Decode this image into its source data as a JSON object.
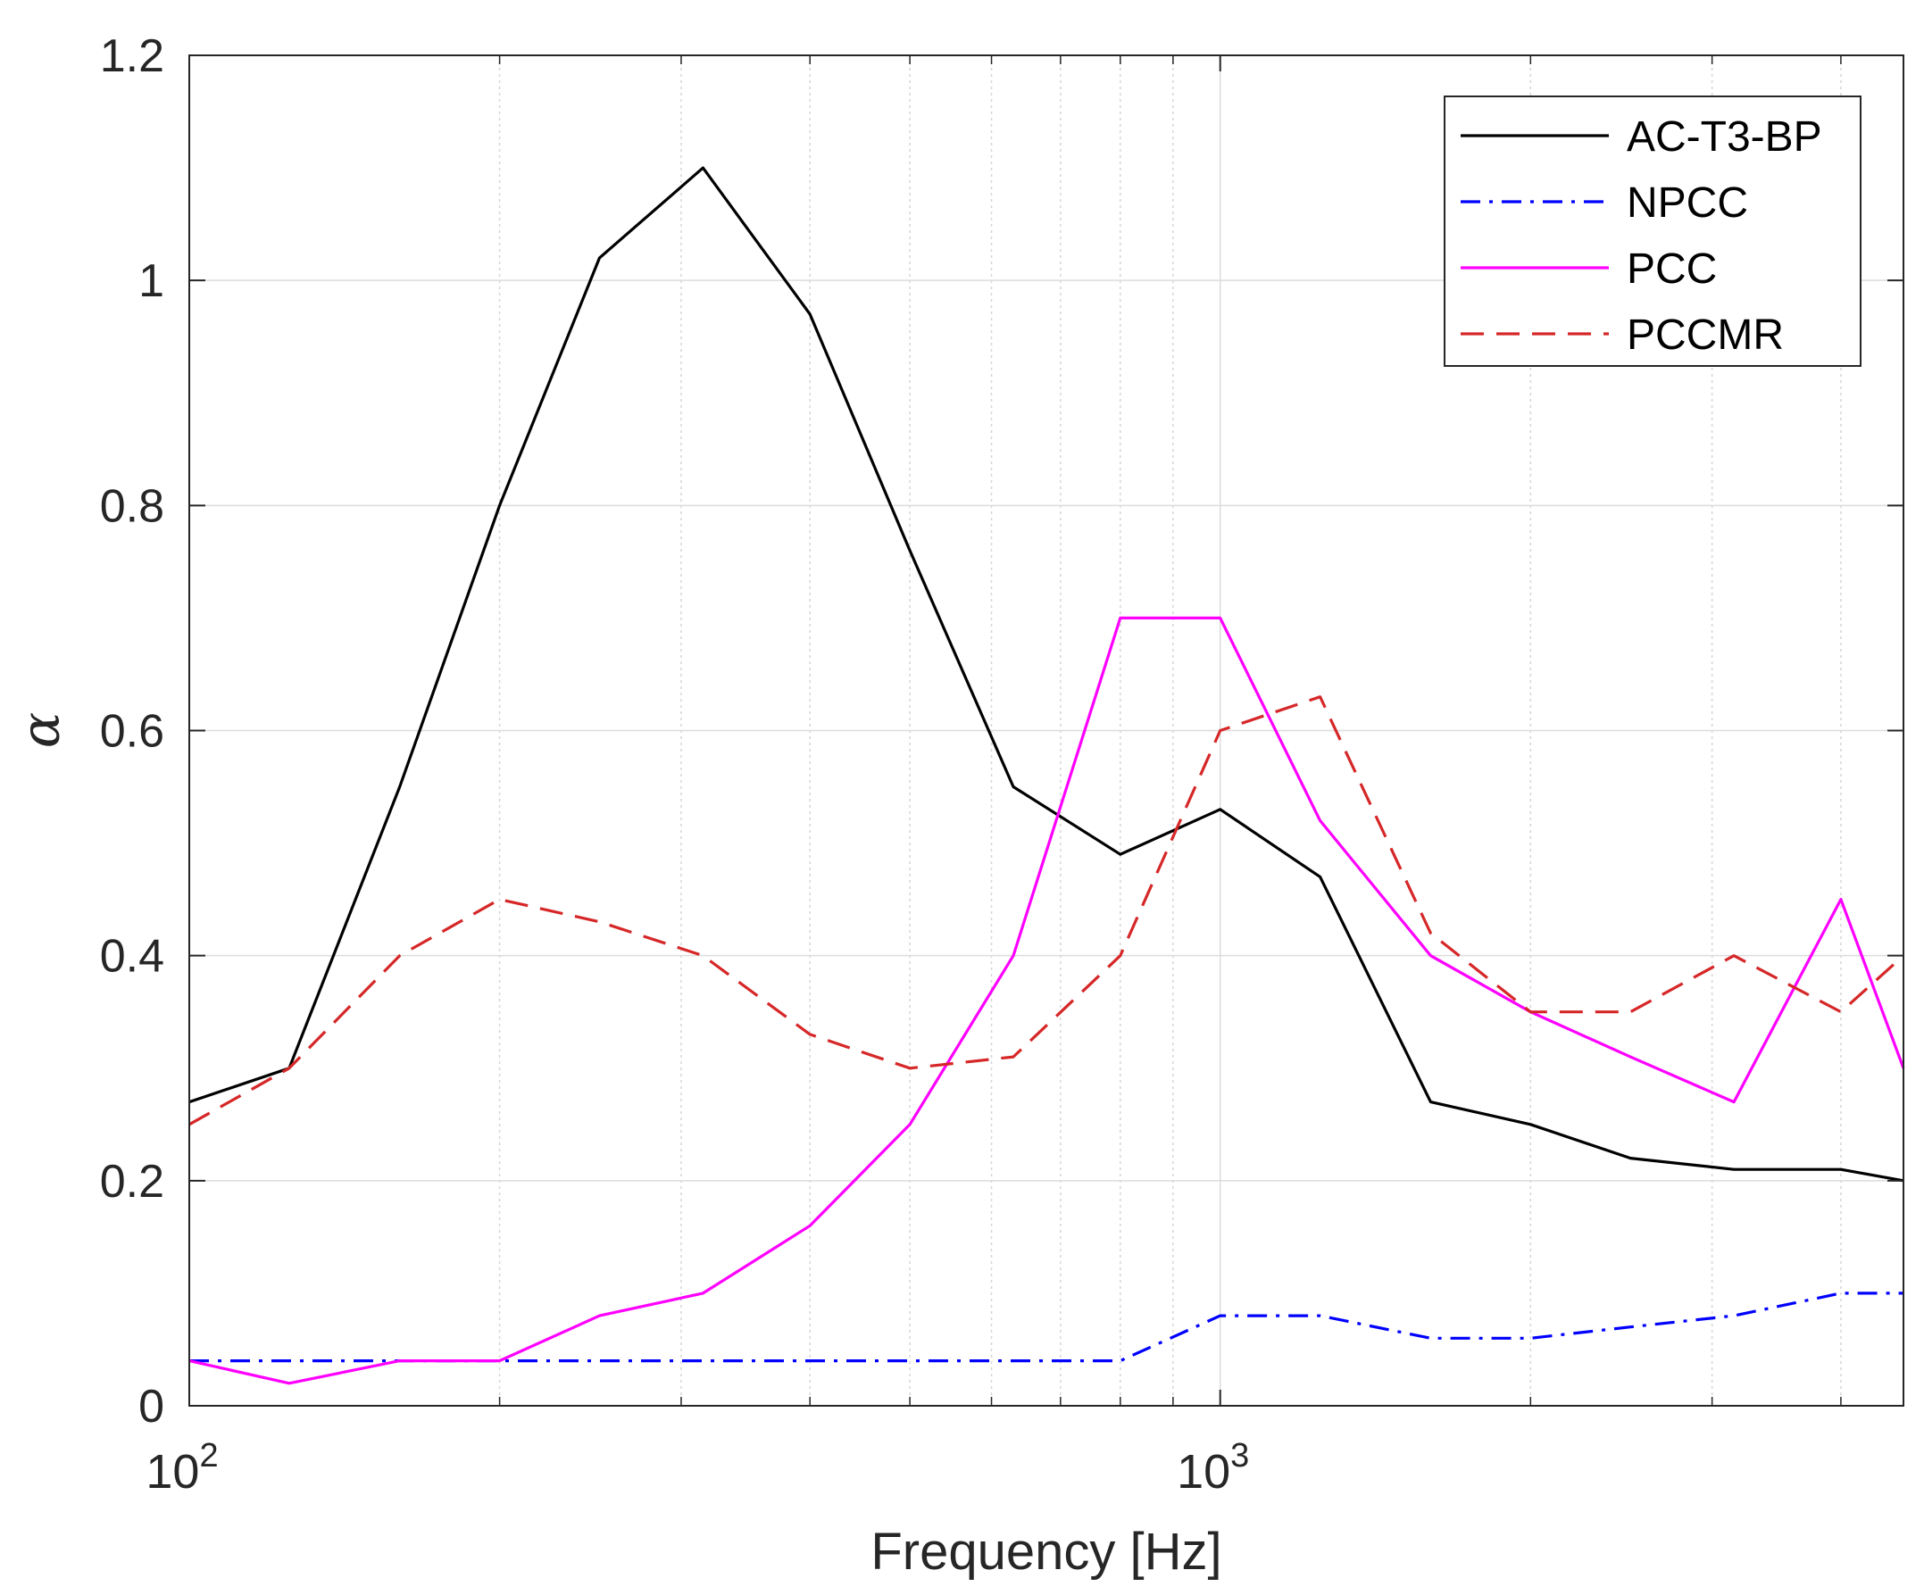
{
  "chart_data": {
    "type": "line",
    "title": "",
    "xlabel": "Frequency [Hz]",
    "ylabel": "α",
    "xscale": "log",
    "xlim": [
      100,
      4600
    ],
    "ylim": [
      0,
      1.2
    ],
    "grid": true,
    "legend_position": "top-right",
    "y_ticks": [
      0,
      0.2,
      0.4,
      0.6,
      0.8,
      1,
      1.2
    ],
    "y_tick_labels": [
      "0",
      "0.2",
      "0.4",
      "0.6",
      "0.8",
      "1",
      "1.2"
    ],
    "x_major_ticks": [
      {
        "value": 100,
        "base": "10",
        "exp": "2"
      },
      {
        "value": 1000,
        "base": "10",
        "exp": "3"
      }
    ],
    "x_minor_ticks": [
      200,
      300,
      400,
      500,
      600,
      700,
      800,
      900,
      2000,
      3000,
      4000
    ],
    "x": [
      100,
      125,
      160,
      200,
      250,
      315,
      400,
      500,
      630,
      800,
      1000,
      1250,
      1600,
      2000,
      2500,
      3150,
      4000,
      4600
    ],
    "series": [
      {
        "name": "AC-T3-BP",
        "color": "#000000",
        "dash": "solid",
        "values": [
          0.27,
          0.3,
          0.55,
          0.8,
          1.02,
          1.1,
          0.97,
          0.76,
          0.55,
          0.49,
          0.53,
          0.47,
          0.27,
          0.25,
          0.22,
          0.21,
          0.21,
          0.2
        ]
      },
      {
        "name": "NPCC",
        "color": "#0000ff",
        "dash": "dashdot",
        "values": [
          0.04,
          0.04,
          0.04,
          0.04,
          0.04,
          0.04,
          0.04,
          0.04,
          0.04,
          0.04,
          0.08,
          0.08,
          0.06,
          0.06,
          0.07,
          0.08,
          0.1,
          0.1
        ]
      },
      {
        "name": "PCC",
        "color": "#ff00ff",
        "dash": "solid",
        "values": [
          0.04,
          0.02,
          0.04,
          0.04,
          0.08,
          0.1,
          0.16,
          0.25,
          0.4,
          0.7,
          0.7,
          0.52,
          0.4,
          0.35,
          0.31,
          0.27,
          0.45,
          0.3
        ]
      },
      {
        "name": "PCCMR",
        "color": "#d62728",
        "dash": "dashed",
        "values": [
          0.25,
          0.3,
          0.4,
          0.45,
          0.43,
          0.4,
          0.33,
          0.3,
          0.31,
          0.4,
          0.6,
          0.63,
          0.42,
          0.35,
          0.35,
          0.4,
          0.35,
          0.4
        ]
      }
    ]
  }
}
